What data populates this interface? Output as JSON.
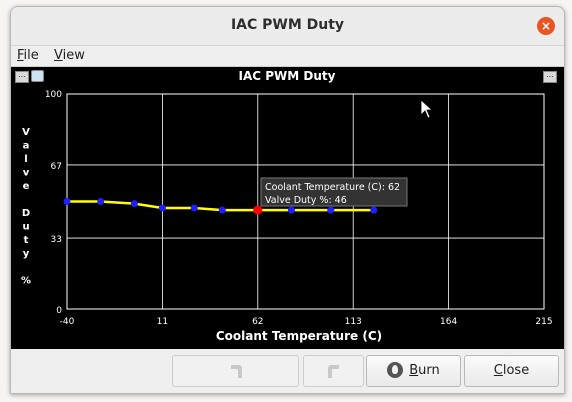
{
  "window": {
    "title": "IAC PWM Duty",
    "close_glyph": "×"
  },
  "menu": [
    {
      "mnemonic": "F",
      "rest": "ile"
    },
    {
      "mnemonic": "V",
      "rest": "iew"
    }
  ],
  "chart_data": {
    "type": "line",
    "title": "IAC PWM Duty",
    "xlabel": "Coolant Temperature (C)",
    "ylabel": "Valve Duty %",
    "ylabel_chars": [
      "V",
      "a",
      "l",
      "v",
      "e",
      "",
      "D",
      "u",
      "t",
      "y",
      "",
      "%"
    ],
    "xlim": [
      -40,
      215
    ],
    "ylim": [
      0,
      100
    ],
    "x_ticks": [
      "-40",
      "11",
      "62",
      "113",
      "164",
      "215"
    ],
    "y_ticks": [
      "0",
      "33",
      "67",
      "100"
    ],
    "grid": true,
    "line_color": "#ffff00",
    "point_color": "#2020ff",
    "selected_color": "#ff0000",
    "x": [
      -40,
      -22,
      -4,
      11,
      28,
      43,
      62,
      80,
      101,
      124
    ],
    "values": [
      50,
      50,
      49,
      47,
      47,
      46,
      46,
      46,
      46,
      46
    ],
    "selected_index": 6,
    "tooltip": {
      "line1": "Coolant Temperature (C): 62",
      "line2": "Valve Duty %: 46"
    }
  },
  "buttons": {
    "undo": {
      "icon": "undo-arrow-icon"
    },
    "redo": {
      "icon": "redo-arrow-icon"
    },
    "burn": {
      "mnemonic": "B",
      "rest": "urn",
      "icon": "burn-flame-icon"
    },
    "close": {
      "mnemonic": "C",
      "rest": "lose"
    }
  },
  "colors": {
    "accent": "#e95420",
    "plot_bg": "#000000",
    "grid": "#ffffff"
  }
}
